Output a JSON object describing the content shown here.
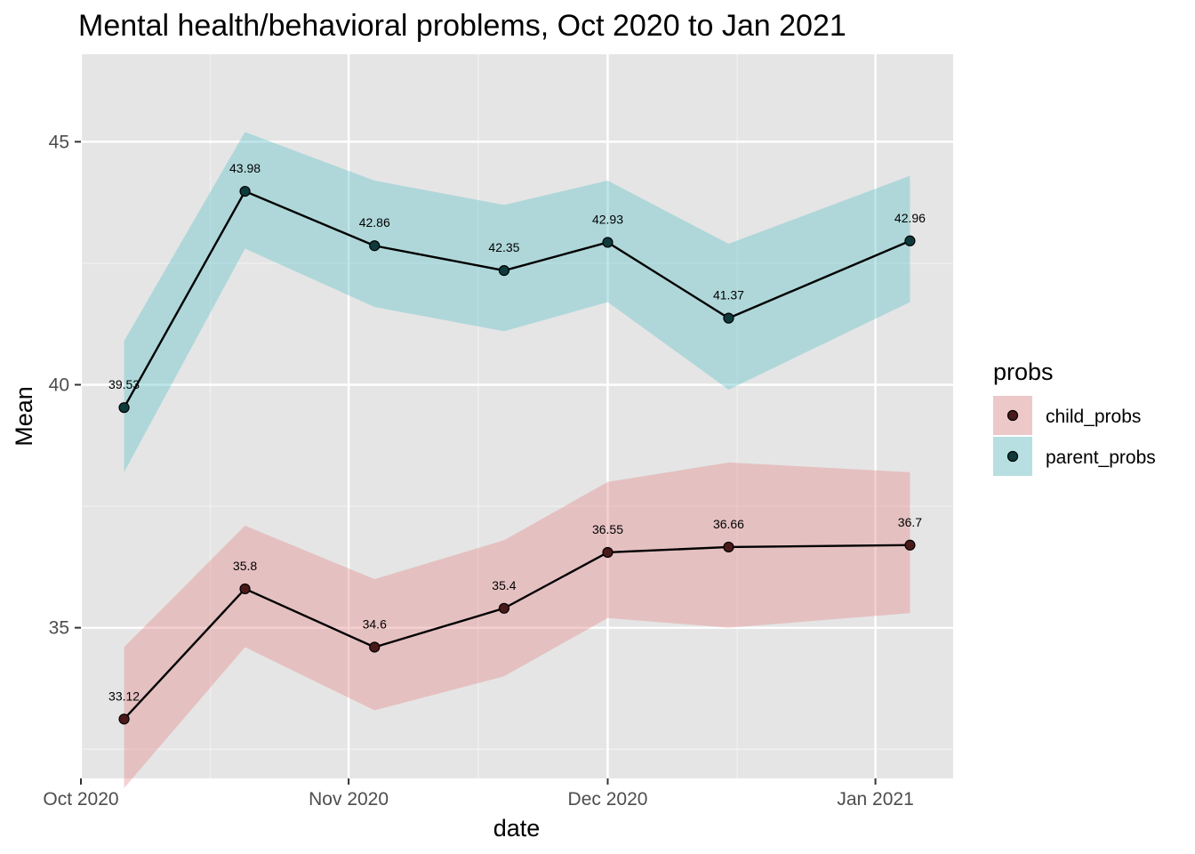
{
  "chart_data": {
    "type": "line",
    "title": "Mental health/behavioral problems, Oct 2020 to Jan 2021",
    "xlabel": "date",
    "ylabel": "Mean",
    "x": [
      "2020-10-06",
      "2020-10-20",
      "2020-11-04",
      "2020-11-19",
      "2020-12-01",
      "2020-12-15",
      "2021-01-05"
    ],
    "xlim": [
      "2020-10-01",
      "2021-01-10"
    ],
    "xticks": [
      {
        "date": "2020-10-01",
        "label": "Oct 2020"
      },
      {
        "date": "2020-11-01",
        "label": "Nov 2020"
      },
      {
        "date": "2020-12-01",
        "label": "Dec 2020"
      },
      {
        "date": "2021-01-01",
        "label": "Jan 2021"
      }
    ],
    "xminor": [
      "2020-10-16",
      "2020-11-16",
      "2020-12-16"
    ],
    "ylim": [
      31.9,
      46.8
    ],
    "yticks": [
      35,
      40,
      45
    ],
    "yminor": [
      32.5,
      37.5,
      42.5
    ],
    "grid": true,
    "legend": {
      "title": "probs",
      "position": "right"
    },
    "series": [
      {
        "name": "parent_probs",
        "color": "#5ec4c8",
        "values": [
          39.53,
          43.98,
          42.86,
          42.35,
          42.93,
          41.37,
          42.96
        ],
        "labels": [
          "39.53",
          "43.98",
          "42.86",
          "42.35",
          "42.93",
          "41.37",
          "42.96"
        ],
        "lower": [
          38.2,
          42.8,
          41.6,
          41.1,
          41.7,
          39.9,
          41.7
        ],
        "upper": [
          40.9,
          45.2,
          44.2,
          43.7,
          44.2,
          42.9,
          44.3
        ]
      },
      {
        "name": "child_probs",
        "color": "#e6898b",
        "values": [
          33.12,
          35.8,
          34.6,
          35.4,
          36.55,
          36.66,
          36.7
        ],
        "labels": [
          "33.12",
          "35.8",
          "34.6",
          "35.4",
          "36.55",
          "36.66",
          "36.7"
        ],
        "lower": [
          31.7,
          34.6,
          33.3,
          34.0,
          35.2,
          35.0,
          35.3
        ],
        "upper": [
          34.6,
          37.1,
          36.0,
          36.8,
          38.0,
          38.4,
          38.2
        ]
      }
    ]
  }
}
